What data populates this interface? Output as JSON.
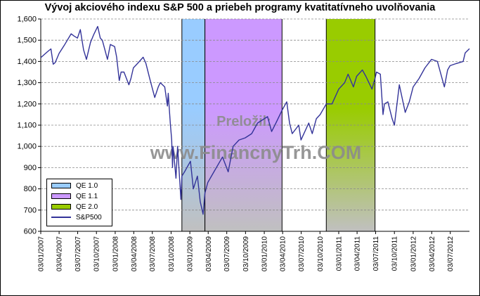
{
  "chart_data": {
    "type": "line",
    "title": "Vývoj akciového indexu S&P 500 a priebeh programy kvatitatívneho uvolňovania",
    "xlabel": "",
    "ylabel": "",
    "ylim": [
      600,
      1600
    ],
    "yticks": [
      "600",
      "700",
      "800",
      "900",
      "1,000",
      "1,100",
      "1,200",
      "1,300",
      "1,400",
      "1,500",
      "1,600"
    ],
    "xlim": [
      "2007-01-03",
      "2012-10-05"
    ],
    "xticks": [
      "03/01/2007",
      "03/04/2007",
      "03/07/2007",
      "03/10/2007",
      "03/01/2008",
      "03/04/2008",
      "03/07/2008",
      "03/10/2008",
      "03/01/2009",
      "03/04/2009",
      "03/07/2009",
      "03/10/2009",
      "03/01/2010",
      "03/04/2010",
      "03/07/2010",
      "03/10/2010",
      "03/01/2011",
      "03/04/2011",
      "03/07/2011",
      "03/10/2011",
      "03/01/2012",
      "03/04/2012",
      "03/07/2012"
    ],
    "grid": "horizontal dashed",
    "legend_position": "bottom-left",
    "periods": [
      {
        "name": "QE 1.0",
        "start": "2008-11-25",
        "end": "2009-03-18",
        "color": "#99ccff"
      },
      {
        "name": "QE 1.1",
        "start": "2009-03-18",
        "end": "2010-03-31",
        "color": "#cc99ff"
      },
      {
        "name": "QE 2.0",
        "start": "2010-11-03",
        "end": "2011-06-30",
        "color": "#99cc00"
      }
    ],
    "series": [
      {
        "name": "S&P500",
        "color": "#333399",
        "x": [
          "2007-01-03",
          "2007-02-05",
          "2007-02-22",
          "2007-03-05",
          "2007-03-15",
          "2007-04-03",
          "2007-05-01",
          "2007-06-01",
          "2007-06-15",
          "2007-07-02",
          "2007-07-16",
          "2007-08-01",
          "2007-08-15",
          "2007-09-04",
          "2007-09-19",
          "2007-10-09",
          "2007-10-22",
          "2007-11-01",
          "2007-11-26",
          "2007-12-10",
          "2007-12-31",
          "2008-01-10",
          "2008-01-23",
          "2008-02-01",
          "2008-02-15",
          "2008-03-10",
          "2008-03-20",
          "2008-04-01",
          "2008-04-21",
          "2008-05-19",
          "2008-06-02",
          "2008-06-20",
          "2008-07-15",
          "2008-08-01",
          "2008-08-11",
          "2008-09-02",
          "2008-09-15",
          "2008-09-19",
          "2008-09-29",
          "2008-10-06",
          "2008-10-10",
          "2008-10-13",
          "2008-10-27",
          "2008-11-04",
          "2008-11-20",
          "2008-11-25",
          "2008-12-08",
          "2009-01-06",
          "2009-01-20",
          "2009-02-09",
          "2009-02-23",
          "2009-03-09",
          "2009-03-18",
          "2009-04-01",
          "2009-05-01",
          "2009-06-12",
          "2009-07-10",
          "2009-08-03",
          "2009-09-01",
          "2009-10-01",
          "2009-11-02",
          "2009-12-01",
          "2010-01-19",
          "2010-02-08",
          "2010-03-01",
          "2010-03-31",
          "2010-04-23",
          "2010-05-07",
          "2010-05-20",
          "2010-06-21",
          "2010-07-02",
          "2010-08-09",
          "2010-08-26",
          "2010-09-15",
          "2010-10-04",
          "2010-11-03",
          "2010-12-01",
          "2011-01-03",
          "2011-02-01",
          "2011-02-18",
          "2011-03-16",
          "2011-04-01",
          "2011-04-29",
          "2011-05-16",
          "2011-06-15",
          "2011-06-30",
          "2011-07-07",
          "2011-07-26",
          "2011-08-08",
          "2011-08-15",
          "2011-09-01",
          "2011-09-22",
          "2011-10-03",
          "2011-10-27",
          "2011-11-25",
          "2011-12-15",
          "2012-01-03",
          "2012-02-01",
          "2012-03-01",
          "2012-04-02",
          "2012-05-01",
          "2012-06-04",
          "2012-06-20",
          "2012-07-02",
          "2012-08-01",
          "2012-09-04",
          "2012-09-14",
          "2012-10-05"
        ],
        "values": [
          1418,
          1446,
          1459,
          1387,
          1395,
          1438,
          1480,
          1530,
          1520,
          1510,
          1550,
          1455,
          1410,
          1490,
          1525,
          1565,
          1510,
          1500,
          1410,
          1480,
          1470,
          1420,
          1310,
          1350,
          1350,
          1290,
          1320,
          1370,
          1390,
          1420,
          1390,
          1320,
          1230,
          1280,
          1300,
          1280,
          1190,
          1250,
          1110,
          1030,
          900,
          1000,
          850,
          1000,
          750,
          860,
          880,
          930,
          800,
          860,
          740,
          680,
          780,
          830,
          880,
          950,
          880,
          1000,
          1030,
          1040,
          1060,
          1110,
          1140,
          1070,
          1110,
          1170,
          1210,
          1110,
          1060,
          1100,
          1030,
          1110,
          1060,
          1130,
          1150,
          1200,
          1200,
          1270,
          1300,
          1340,
          1280,
          1330,
          1360,
          1330,
          1270,
          1320,
          1350,
          1340,
          1150,
          1200,
          1210,
          1130,
          1100,
          1290,
          1160,
          1210,
          1280,
          1320,
          1370,
          1410,
          1400,
          1280,
          1360,
          1380,
          1390,
          1400,
          1440,
          1460
        ]
      }
    ]
  },
  "watermark": {
    "line1": "Preložil:",
    "line2": "www.FinancnyTrh.COM"
  },
  "legend": {
    "items": [
      {
        "label": "QE 1.0",
        "color": "#99ccff",
        "kind": "box"
      },
      {
        "label": "QE 1.1",
        "color": "#cc99ff",
        "kind": "box"
      },
      {
        "label": "QE 2.0",
        "color": "#99cc00",
        "kind": "box"
      },
      {
        "label": "S&P500",
        "color": "#333399",
        "kind": "line"
      }
    ]
  }
}
